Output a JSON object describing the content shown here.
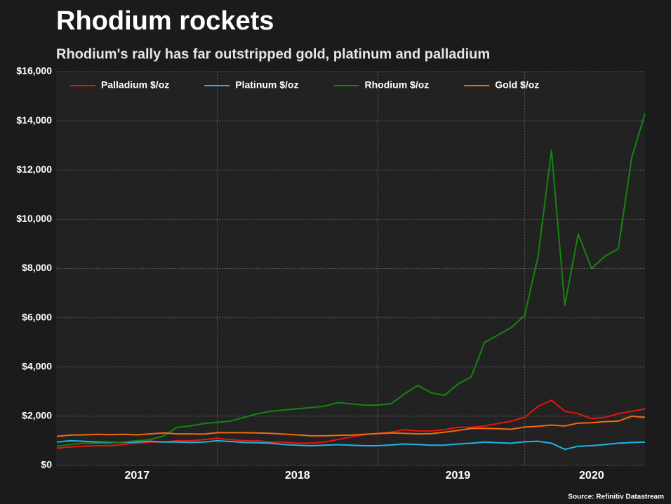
{
  "chart_data": {
    "type": "line",
    "title": "Rhodium rockets",
    "subtitle": "Rhodium's rally has far outstripped gold, platinum and palladium",
    "source": "Source: Refinitiv Datastream",
    "categories": [
      null,
      null,
      null,
      null,
      null,
      null,
      "2017",
      null,
      null,
      null,
      null,
      null,
      null,
      null,
      null,
      null,
      null,
      null,
      "2018",
      null,
      null,
      null,
      null,
      null,
      null,
      null,
      null,
      null,
      null,
      null,
      "2019",
      null,
      null,
      null,
      null,
      null,
      null,
      null,
      null,
      null,
      "2020",
      null,
      null,
      null,
      null
    ],
    "series": [
      {
        "name": "Palladium $/oz",
        "color": "#e8140c",
        "values": [
          700,
          750,
          780,
          800,
          800,
          850,
          900,
          950,
          950,
          1000,
          1000,
          1050,
          1100,
          1050,
          1000,
          1000,
          950,
          950,
          900,
          900,
          950,
          1050,
          1150,
          1250,
          1300,
          1350,
          1450,
          1400,
          1400,
          1450,
          1550,
          1550,
          1600,
          1700,
          1800,
          1950,
          2400,
          2650,
          2200,
          2100,
          1900,
          1950,
          2100,
          2200,
          2300
        ]
      },
      {
        "name": "Platinum $/oz",
        "color": "#1fb4e8",
        "values": [
          950,
          1000,
          980,
          950,
          930,
          930,
          950,
          980,
          950,
          950,
          930,
          950,
          1000,
          970,
          930,
          920,
          900,
          850,
          820,
          800,
          820,
          840,
          820,
          800,
          800,
          830,
          870,
          850,
          820,
          820,
          870,
          900,
          950,
          920,
          900,
          960,
          980,
          900,
          650,
          780,
          800,
          850,
          900,
          930,
          950
        ]
      },
      {
        "name": "Rhodium $/oz",
        "color": "#16840e",
        "values": [
          780,
          850,
          900,
          900,
          900,
          950,
          1000,
          1050,
          1200,
          1550,
          1600,
          1700,
          1750,
          1800,
          1950,
          2100,
          2200,
          2250,
          2300,
          2350,
          2400,
          2550,
          2500,
          2450,
          2450,
          2500,
          2900,
          3250,
          2950,
          2850,
          3300,
          3600,
          5000,
          5300,
          5600,
          6100,
          8500,
          12800,
          6500,
          9400,
          8000,
          8500,
          8800,
          12500,
          14300
        ]
      },
      {
        "name": "Gold $/oz",
        "color": "#f26a0f",
        "values": [
          1180,
          1230,
          1240,
          1260,
          1250,
          1260,
          1240,
          1280,
          1320,
          1280,
          1280,
          1270,
          1330,
          1330,
          1330,
          1320,
          1300,
          1270,
          1240,
          1200,
          1200,
          1220,
          1230,
          1260,
          1290,
          1320,
          1300,
          1280,
          1290,
          1350,
          1420,
          1500,
          1510,
          1490,
          1470,
          1560,
          1590,
          1640,
          1600,
          1720,
          1730,
          1780,
          1800,
          2000,
          1950
        ]
      }
    ],
    "ylim": [
      0,
      16000
    ],
    "yticks": [
      {
        "value": 0,
        "label": "$0"
      },
      {
        "value": 2000,
        "label": "$2,000"
      },
      {
        "value": 4000,
        "label": "$4,000"
      },
      {
        "value": 6000,
        "label": "$6,000"
      },
      {
        "value": 8000,
        "label": "$8,000"
      },
      {
        "value": 10000,
        "label": "$10,000"
      },
      {
        "value": 12000,
        "label": "$12,000"
      },
      {
        "value": 14000,
        "label": "$14,000"
      },
      {
        "value": 16000,
        "label": "$16,000"
      }
    ],
    "grid": true,
    "legend": "upper left"
  }
}
